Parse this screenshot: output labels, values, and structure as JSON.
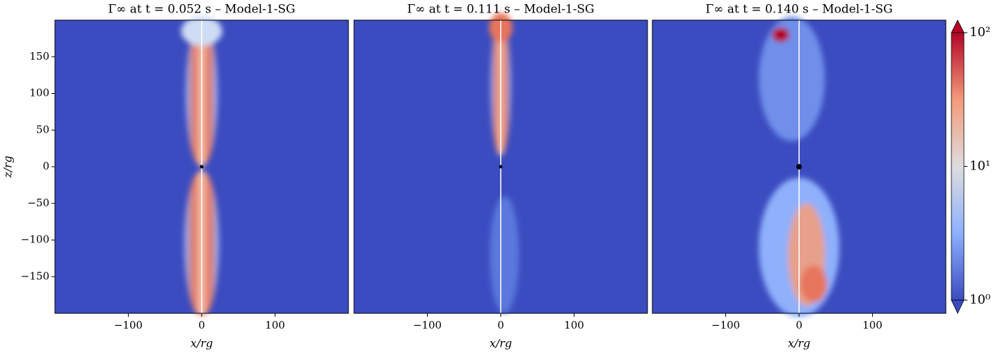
{
  "chart_data": [
    {
      "type": "heatmap",
      "title": "Γ∞ at t = 0.052 s – Model-1-SG",
      "xlabel": "x/rg",
      "ylabel": "z/rg",
      "xlim": [
        -200,
        200
      ],
      "ylim": [
        -200,
        200
      ],
      "xticks": [
        {
          "value": -100,
          "label": "−100"
        },
        0,
        100
      ],
      "yticks": [
        {
          "value": -150,
          "label": "−150"
        },
        {
          "value": -100,
          "label": "−100"
        },
        {
          "value": -50,
          "label": "−50"
        },
        0,
        50,
        100,
        150
      ]
    },
    {
      "type": "heatmap",
      "title": "Γ∞ at t = 0.111 s – Model-1-SG",
      "xlabel": "x/rg",
      "xlim": [
        -200,
        200
      ],
      "ylim": [
        -200,
        200
      ],
      "xticks": [
        {
          "value": -100,
          "label": "−100"
        },
        0,
        100
      ]
    },
    {
      "type": "heatmap",
      "title": "Γ∞ at t = 0.140 s – Model-1-SG",
      "xlabel": "x/rg",
      "xlim": [
        -200,
        200
      ],
      "ylim": [
        -200,
        200
      ],
      "xticks": [
        {
          "value": -100,
          "label": "−100"
        },
        0,
        100
      ]
    }
  ],
  "colorbar": {
    "scale": "log",
    "lim": [
      1,
      100
    ],
    "ticks": [
      {
        "value": 1,
        "label": "10⁰"
      },
      {
        "value": 10,
        "label": "10¹"
      },
      {
        "value": 100,
        "label": "10²"
      }
    ]
  }
}
